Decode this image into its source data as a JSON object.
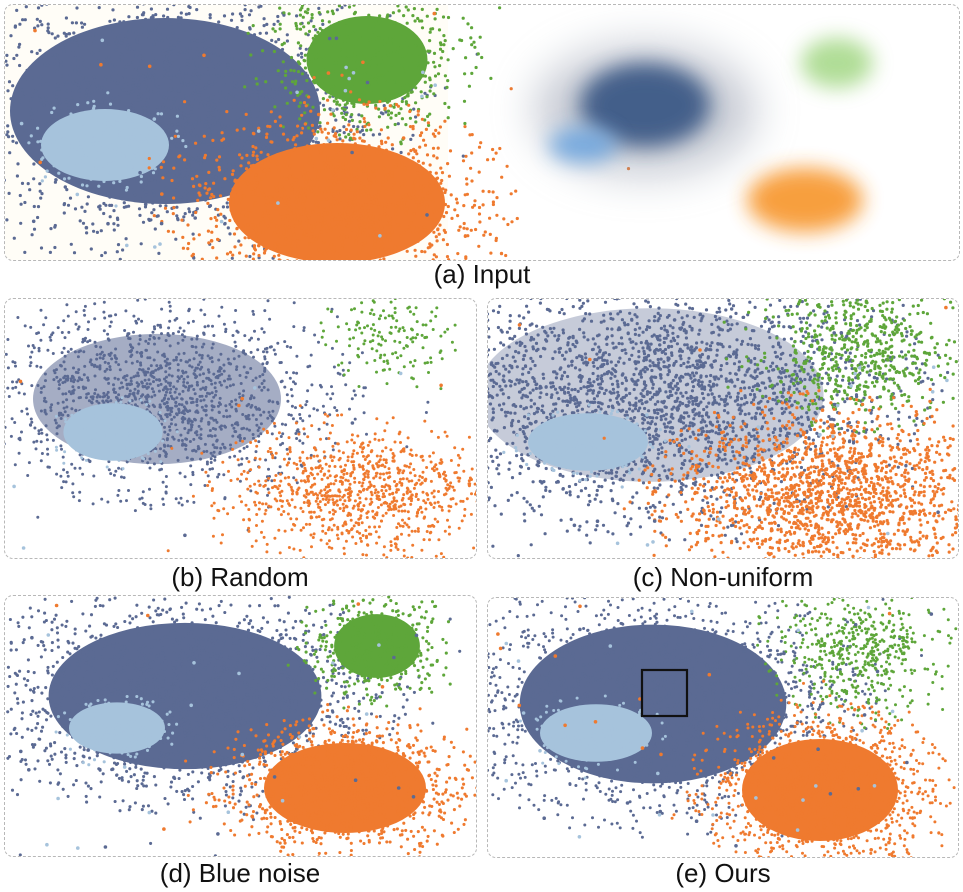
{
  "colors": {
    "dark_blue": "#5b6a93",
    "light_blue": "#a6c3dc",
    "green": "#5ea63a",
    "orange": "#ef7a2f",
    "blend_blue": "#3e5a86",
    "blend_light_blue": "#6fa6de",
    "blend_green": "#8fcf6a",
    "blend_orange": "#f7952c",
    "panel_border": "#b8b8b8",
    "highlight_box": "#111111"
  },
  "captions": {
    "input": "(a) Input",
    "random": "(b) Random",
    "non_uniform": "(c) Non-uniform",
    "blue_noise": "(d) Blue noise",
    "ours": "(e) Ours"
  },
  "chart_data": [
    {
      "type": "scatter",
      "title": "(a) Input",
      "series": [
        "dark_blue",
        "light_blue",
        "green",
        "orange"
      ],
      "views": [
        "scatterplot",
        "density"
      ]
    },
    {
      "type": "scatter",
      "title": "(b) Random",
      "series": [
        "dark_blue",
        "light_blue",
        "green",
        "orange"
      ]
    },
    {
      "type": "scatter",
      "title": "(c) Non-uniform",
      "series": [
        "dark_blue",
        "light_blue",
        "green",
        "orange"
      ]
    },
    {
      "type": "scatter",
      "title": "(d) Blue noise",
      "series": [
        "dark_blue",
        "light_blue",
        "green",
        "orange"
      ]
    },
    {
      "type": "scatter",
      "title": "(e) Ours",
      "series": [
        "dark_blue",
        "light_blue",
        "green",
        "orange"
      ],
      "annotations": [
        "highlight-box"
      ]
    }
  ]
}
